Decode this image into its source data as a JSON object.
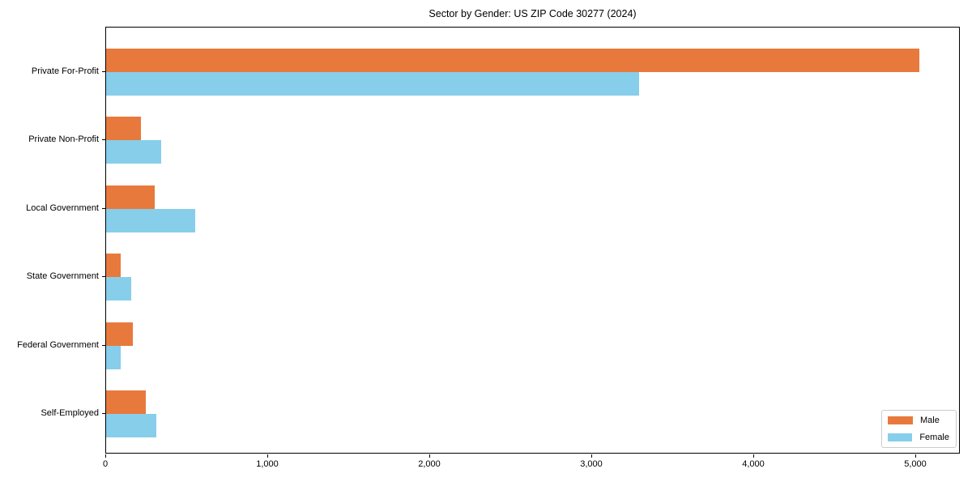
{
  "chart_data": {
    "type": "bar",
    "orientation": "horizontal",
    "title": "Sector by Gender: US ZIP Code 30277 (2024)",
    "categories": [
      "Private For-Profit",
      "Private Non-Profit",
      "Local Government",
      "State Government",
      "Federal Government",
      "Self-Employed"
    ],
    "series": [
      {
        "name": "Male",
        "color": "#E8793D",
        "values": [
          5020,
          215,
          300,
          90,
          165,
          245
        ]
      },
      {
        "name": "Female",
        "color": "#87CEEB",
        "values": [
          3290,
          340,
          550,
          155,
          90,
          310
        ]
      }
    ],
    "xlabel": "",
    "ylabel": "",
    "xlim": [
      0,
      5275
    ],
    "xticks": {
      "values": [
        0,
        1000,
        2000,
        3000,
        4000,
        5000
      ],
      "labels": [
        "0",
        "1,000",
        "2,000",
        "3,000",
        "4,000",
        "5,000"
      ]
    },
    "grid": false,
    "legend": {
      "position": "lower right",
      "items": [
        "Male",
        "Female"
      ]
    }
  }
}
